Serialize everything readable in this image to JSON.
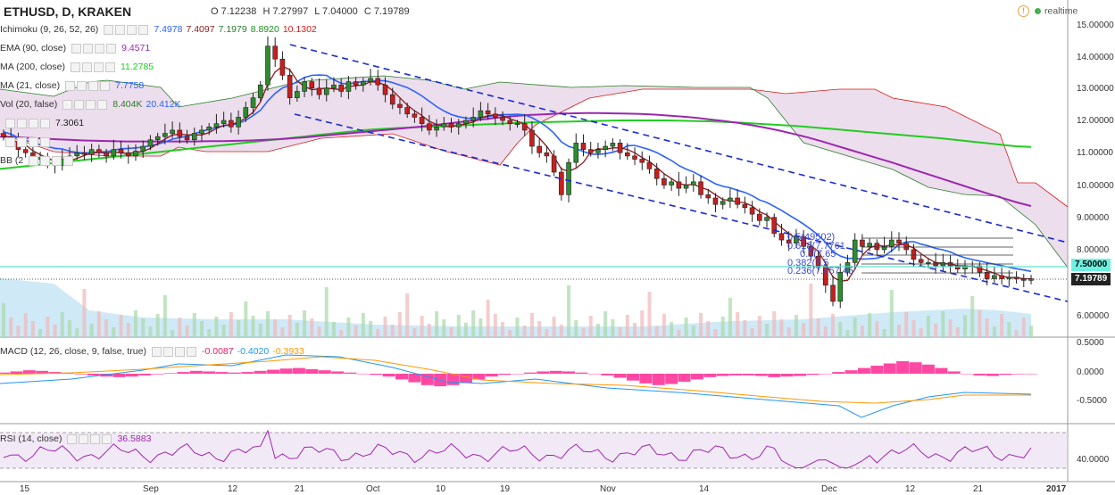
{
  "header": {
    "symbol": "ETHUSD, D, KRAKEN",
    "open": "O 7.12238",
    "high": "H 7.27997",
    "low": "L 7.04000",
    "close": "C 7.19789",
    "realtime_label": "realtime",
    "alert_icon": "alert-circle-icon",
    "status_icon": "realtime-dot-icon"
  },
  "indicators": [
    {
      "label": "Ichimoku (9, 26, 52, 26)",
      "values": [
        "7.4978",
        "7.4097",
        "7.1979",
        "8.8920",
        "10.1302"
      ],
      "colors": [
        "#2962ff",
        "#8b1a1a",
        "#2a7d2a",
        "#1a8f1a",
        "#d81b1b"
      ]
    },
    {
      "label": "EMA (90, close)",
      "values": [
        "9.4571"
      ],
      "colors": [
        "#9c27b0"
      ]
    },
    {
      "label": "MA (200, close)",
      "values": [
        "11.2785"
      ],
      "colors": [
        "#22cc22"
      ]
    },
    {
      "label": "MA (21, close)",
      "values": [
        "7.7758"
      ],
      "colors": [
        "#2962ff"
      ]
    },
    {
      "label": "Vol (20, false)",
      "values": [
        "8.404K",
        "20.412K"
      ],
      "colors": [
        "#2a7d2a",
        "#2962ff"
      ]
    },
    {
      "label": "",
      "values": [
        "7.3061"
      ],
      "colors": [
        "#222222"
      ]
    },
    {
      "label": "",
      "values": [],
      "colors": []
    },
    {
      "label": "BB (2",
      "values": [],
      "colors": []
    }
  ],
  "macd": {
    "label": "MACD (12, 26, close, 9, false, true)",
    "values": [
      "-0.0087",
      "-0.4020",
      "-0.3933"
    ],
    "colors": [
      "#e91e63",
      "#2196f3",
      "#ff9800"
    ]
  },
  "rsi": {
    "label": "RSI (14, close)",
    "values": [
      "36.5883"
    ],
    "colors": [
      "#9c27b0"
    ]
  },
  "price_tags": {
    "current": "7.19789",
    "level": "7.50000"
  },
  "fib_labels": [
    "0.5(",
    "0.618(",
    "0.5(",
    "0.382(",
    "0.236(7.45"
  ],
  "fib_values": [
    "49502)",
    "7.7761",
    "7.65",
    "7.5",
    "7.45"
  ],
  "chart_data": {
    "type": "candlestick",
    "y_axis_ticks": [
      "15.00000",
      "14.00000",
      "13.00000",
      "12.00000",
      "11.00000",
      "10.00000",
      "9.00000",
      "8.00000",
      "6.00000"
    ],
    "macd_axis_ticks": [
      "0.5000",
      "0.0000",
      "-0.5000"
    ],
    "rsi_axis_ticks": [
      "40.0000"
    ],
    "x_axis_ticks": [
      "15",
      "Sep",
      "12",
      "21",
      "Oct",
      "10",
      "19",
      "Nov",
      "14",
      "Dec",
      "12",
      "21",
      "2017"
    ],
    "ylim": [
      6.0,
      15.0
    ],
    "close": [
      11.6,
      11.45,
      11.2,
      11.1,
      10.9,
      10.95,
      10.8,
      10.7,
      10.9,
      11.0,
      11.1,
      11.05,
      11.2,
      11.1,
      11.0,
      11.2,
      11.1,
      11.0,
      11.15,
      11.3,
      11.5,
      11.6,
      11.7,
      11.8,
      11.6,
      11.5,
      11.7,
      11.8,
      11.9,
      12.0,
      12.1,
      11.9,
      12.2,
      12.5,
      12.8,
      13.2,
      14.4,
      14.0,
      13.5,
      12.8,
      13.0,
      13.3,
      13.1,
      12.9,
      13.1,
      13.2,
      13.0,
      13.3,
      13.2,
      13.3,
      13.4,
      13.2,
      12.9,
      12.6,
      12.5,
      12.3,
      12.2,
      12.0,
      11.8,
      11.9,
      12.0,
      11.9,
      12.0,
      12.1,
      12.2,
      12.4,
      12.3,
      12.2,
      12.1,
      12.0,
      12.0,
      11.8,
      11.3,
      11.1,
      11.0,
      10.5,
      9.8,
      10.8,
      11.4,
      11.2,
      11.1,
      11.2,
      11.3,
      11.4,
      11.1,
      11.0,
      10.9,
      10.8,
      10.6,
      10.3,
      10.1,
      10.2,
      10.0,
      10.1,
      10.2,
      9.8,
      9.7,
      9.5,
      9.6,
      9.7,
      9.5,
      9.4,
      9.2,
      9.0,
      9.1,
      8.6,
      8.4,
      8.3,
      8.5,
      8.2,
      7.9,
      7.6,
      7.0,
      6.5,
      7.4,
      7.7,
      8.4,
      8.2,
      8.3,
      8.1,
      8.2,
      8.4,
      8.3,
      8.1,
      7.8,
      7.7,
      7.7,
      7.6,
      7.7,
      7.6,
      7.5,
      7.6,
      7.6,
      7.4,
      7.2,
      7.3,
      7.2,
      7.25,
      7.2,
      7.15,
      7.2
    ],
    "ema90": [
      11.6,
      11.58,
      11.56,
      11.54,
      11.52,
      11.5,
      11.48,
      11.47,
      11.46,
      11.45,
      11.45,
      11.45,
      11.45,
      11.45,
      11.45,
      11.46,
      11.46,
      11.47,
      11.48,
      11.5,
      11.52,
      11.55,
      11.58,
      11.62,
      11.66,
      11.7,
      11.74,
      11.78,
      11.82,
      11.86,
      11.9,
      11.95,
      12.0,
      12.05,
      12.1,
      12.15,
      12.2,
      12.24,
      12.27,
      12.29,
      12.31,
      12.32,
      12.33,
      12.33,
      12.32,
      12.31,
      12.3,
      12.28,
      12.25,
      12.22,
      12.18,
      12.13,
      12.08,
      12.02,
      11.95,
      11.87,
      11.78,
      11.68,
      11.57,
      11.45,
      11.32,
      11.19,
      11.06,
      10.93,
      10.8,
      10.66,
      10.52,
      10.38,
      10.24,
      10.1,
      9.96,
      9.82,
      9.69,
      9.56,
      9.45
    ],
    "sma200": [
      10.6,
      10.65,
      10.7,
      10.75,
      10.8,
      10.85,
      10.9,
      10.95,
      11.0,
      11.05,
      11.1,
      11.15,
      11.2,
      11.25,
      11.3,
      11.35,
      11.4,
      11.45,
      11.5,
      11.55,
      11.6,
      11.65,
      11.7,
      11.75,
      11.8,
      11.83,
      11.86,
      11.88,
      11.9,
      11.92,
      11.94,
      11.96,
      11.98,
      12.0,
      12.02,
      12.04,
      12.05,
      12.06,
      12.07,
      12.08,
      12.09,
      12.1,
      12.1,
      12.1,
      12.1,
      12.09,
      12.08,
      12.07,
      12.05,
      12.03,
      12.0,
      11.97,
      11.94,
      11.91,
      11.87,
      11.83,
      11.79,
      11.75,
      11.71,
      11.67,
      11.63,
      11.59,
      11.55,
      11.5,
      11.45,
      11.4,
      11.35,
      11.3,
      11.28
    ],
    "macd_hist": [
      0.02,
      0.04,
      0.06,
      0.05,
      0.03,
      0.01,
      -0.01,
      -0.03,
      -0.05,
      -0.06,
      -0.05,
      -0.03,
      -0.01,
      0.01,
      0.03,
      0.05,
      0.04,
      0.03,
      0.02,
      0.03,
      0.05,
      0.07,
      0.09,
      0.1,
      0.08,
      0.06,
      0.04,
      0.02,
      0.0,
      -0.02,
      -0.05,
      -0.1,
      -0.15,
      -0.2,
      -0.22,
      -0.2,
      -0.16,
      -0.1,
      -0.05,
      -0.02,
      0.0,
      0.02,
      0.04,
      0.05,
      0.04,
      0.02,
      0.0,
      -0.03,
      -0.07,
      -0.12,
      -0.17,
      -0.2,
      -0.18,
      -0.14,
      -0.1,
      -0.06,
      -0.04,
      -0.03,
      -0.03,
      -0.04,
      -0.06,
      -0.05,
      -0.04,
      -0.02,
      0.0,
      0.03,
      0.06,
      0.1,
      0.14,
      0.18,
      0.22,
      0.2,
      0.16,
      0.1,
      0.04,
      0.0,
      -0.03,
      -0.04,
      -0.02,
      -0.01,
      0.0
    ]
  }
}
